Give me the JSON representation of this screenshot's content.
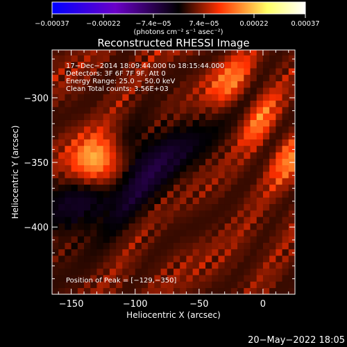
{
  "chart_data": {
    "type": "heatmap",
    "title": "Reconstructed RHESSI Image",
    "xlabel": "Heliocentric X (arcsec)",
    "ylabel": "Heliocentric Y (arcsec)",
    "xlim": [
      -165,
      25
    ],
    "ylim": [
      -452,
      -263
    ],
    "x_ticks": [
      -150,
      -100,
      -50,
      0
    ],
    "x_tick_labels": [
      "−150",
      "−100",
      "−50",
      "0"
    ],
    "y_ticks": [
      -300,
      -350,
      -400
    ],
    "y_tick_labels": [
      "−300",
      "−350",
      "−400"
    ],
    "colorbar": {
      "range": [
        -0.00037,
        0.00037
      ],
      "ticks": [
        -0.00037,
        -0.00022,
        -7.4e-05,
        7.4e-05,
        0.00022,
        0.00037
      ],
      "tick_labels": [
        "−0.00037",
        "−0.00022",
        "−7.4e−05",
        "7.4e−05",
        "0.00022",
        "0.00037"
      ],
      "unit": "(photons cm⁻² s⁻¹ asec⁻²)"
    },
    "peak": {
      "x": -129,
      "y": -350,
      "value": 0.00037
    },
    "colors": {
      "background": "#000000",
      "text": "#ffffff",
      "colormap": [
        "#0000ff",
        "#6a00c8",
        "#000000",
        "#ff3000",
        "#ffff66",
        "#ffffff"
      ]
    }
  },
  "annotations": {
    "time": "17−Dec−2014 18:09:44.000 to 18:15:44.000",
    "detectors": "Detectors: 3F 6F 7F 9F, Att 0",
    "energy": "Energy Range: 25.0 − 50.0 keV",
    "method": "Clean     Total counts: 3.56E+03",
    "peak_label": "Position of Peak = [−129,−350]"
  },
  "footer": {
    "date": "20−May−2022 18:05"
  }
}
